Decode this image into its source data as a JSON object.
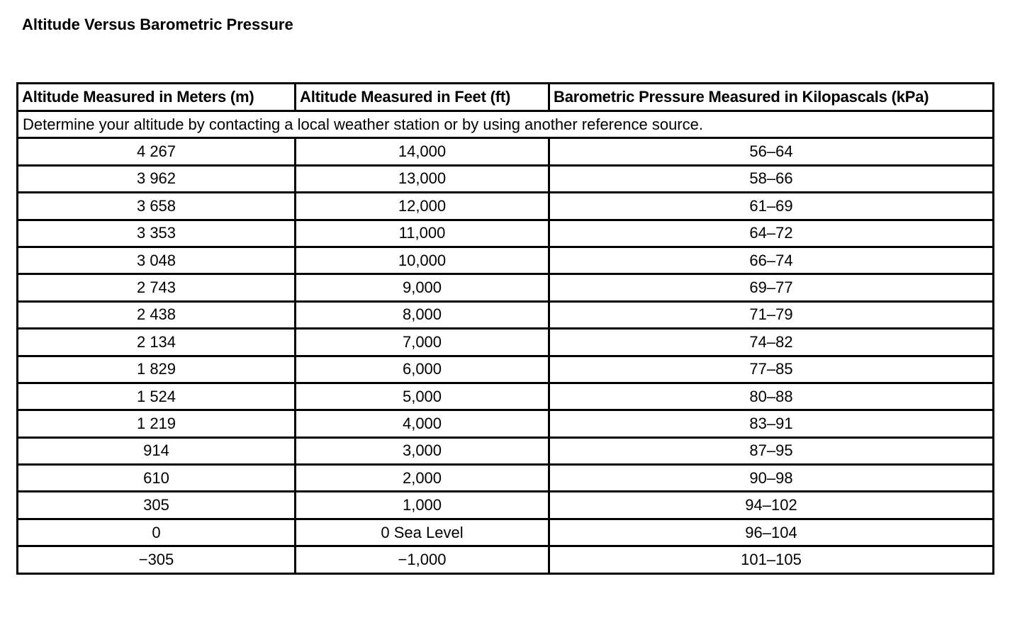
{
  "title": "Altitude Versus Barometric Pressure",
  "table": {
    "headers": [
      "Altitude Measured in Meters (m)",
      "Altitude Measured in Feet (ft)",
      "Barometric Pressure Measured in Kilopascals (kPa)"
    ],
    "note": "Determine your altitude by contacting a local weather station or by using another reference source.",
    "rows": [
      [
        "4 267",
        "14,000",
        "56–64"
      ],
      [
        "3 962",
        "13,000",
        "58–66"
      ],
      [
        "3 658",
        "12,000",
        "61–69"
      ],
      [
        "3 353",
        "11,000",
        "64–72"
      ],
      [
        "3 048",
        "10,000",
        "66–74"
      ],
      [
        "2 743",
        "9,000",
        "69–77"
      ],
      [
        "2 438",
        "8,000",
        "71–79"
      ],
      [
        "2 134",
        "7,000",
        "74–82"
      ],
      [
        "1 829",
        "6,000",
        "77–85"
      ],
      [
        "1 524",
        "5,000",
        "80–88"
      ],
      [
        "1 219",
        "4,000",
        "83–91"
      ],
      [
        "914",
        "3,000",
        "87–95"
      ],
      [
        "610",
        "2,000",
        "90–98"
      ],
      [
        "305",
        "1,000",
        "94–102"
      ],
      [
        "0",
        "0 Sea Level",
        "96–104"
      ],
      [
        "−305",
        "−1,000",
        "101–105"
      ]
    ]
  }
}
